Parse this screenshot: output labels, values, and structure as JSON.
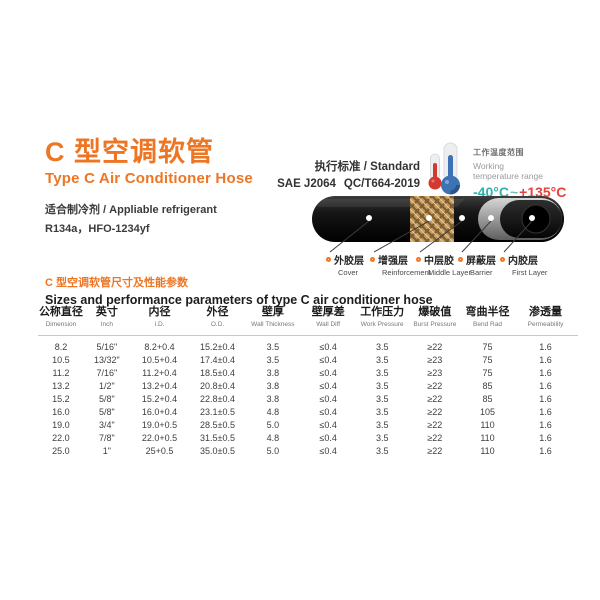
{
  "page": {
    "title_cn": "C 型空调软管",
    "title_en": "Type C Air Conditioner Hose",
    "refrigerant_label": "适合制冷剂 / Appliable refrigerant",
    "refrigerant_value": "R134a，HFO-1234yf"
  },
  "standard": {
    "label": "执行标准 / Standard",
    "value1": "SAE J2064",
    "value2": "QC/T664-2019"
  },
  "temperature": {
    "label_cn": "工作温度范围",
    "label_en_line1": "Working",
    "label_en_line2": "temperature range",
    "low": "-40°C",
    "tilde": "~",
    "high": "+135°C",
    "low_color": "#2fb3ae",
    "high_color": "#e8413c"
  },
  "hose_layers": [
    {
      "cn": "外胶层",
      "en": "Cover"
    },
    {
      "cn": "增强层",
      "en": "Reinforcement"
    },
    {
      "cn": "中层胶",
      "en": "Middle Layer"
    },
    {
      "cn": "屏蔽层",
      "en": "Barrier"
    },
    {
      "cn": "内胶层",
      "en": "First Layer"
    }
  ],
  "table_section": {
    "title_cn": "C 型空调软管尺寸及性能参数",
    "title_en": "Sizes and performance parameters of type C air conditioner hose"
  },
  "table": {
    "headers": [
      {
        "cn": "公称直径",
        "en": "Dimension"
      },
      {
        "cn": "英寸",
        "en": "Inch"
      },
      {
        "cn": "内径",
        "en": "I.D."
      },
      {
        "cn": "外径",
        "en": "O.D."
      },
      {
        "cn": "壁厚",
        "en": "Wall Thickness"
      },
      {
        "cn": "壁厚差",
        "en": "Wall Diff"
      },
      {
        "cn": "工作压力",
        "en": "Work Pressure"
      },
      {
        "cn": "爆破值",
        "en": "Burst Pressure"
      },
      {
        "cn": "弯曲半径",
        "en": "Bend Rad"
      },
      {
        "cn": "渗透量",
        "en": "Permeability"
      }
    ],
    "rows": [
      [
        "8.2",
        "5/16\"",
        "8.2+0.4",
        "15.2±0.4",
        "3.5",
        "≤0.4",
        "3.5",
        "≥22",
        "75",
        "1.6"
      ],
      [
        "10.5",
        "13/32\"",
        "10.5+0.4",
        "17.4±0.4",
        "3.5",
        "≤0.4",
        "3.5",
        "≥23",
        "75",
        "1.6"
      ],
      [
        "11.2",
        "7/16\"",
        "11.2+0.4",
        "18.5±0.4",
        "3.8",
        "≤0.4",
        "3.5",
        "≥23",
        "75",
        "1.6"
      ],
      [
        "13.2",
        "1/2\"",
        "13.2+0.4",
        "20.8±0.4",
        "3.8",
        "≤0.4",
        "3.5",
        "≥22",
        "85",
        "1.6"
      ],
      [
        "15.2",
        "5/8\"",
        "15.2+0.4",
        "22.8±0.4",
        "3.8",
        "≤0.4",
        "3.5",
        "≥22",
        "85",
        "1.6"
      ],
      [
        "16.0",
        "5/8\"",
        "16.0+0.4",
        "23.1±0.5",
        "4.8",
        "≤0.4",
        "3.5",
        "≥22",
        "105",
        "1.6"
      ],
      [
        "19.0",
        "3/4\"",
        "19.0+0.5",
        "28.5±0.5",
        "5.0",
        "≤0.4",
        "3.5",
        "≥22",
        "110",
        "1.6"
      ],
      [
        "22.0",
        "7/8\"",
        "22.0+0.5",
        "31.5±0.5",
        "4.8",
        "≤0.4",
        "3.5",
        "≥22",
        "110",
        "1.6"
      ],
      [
        "25.0",
        "1\"",
        "25+0.5",
        "35.0±0.5",
        "5.0",
        "≤0.4",
        "3.5",
        "≥22",
        "110",
        "1.6"
      ]
    ]
  },
  "colors": {
    "accent_orange": "#ed7624"
  }
}
